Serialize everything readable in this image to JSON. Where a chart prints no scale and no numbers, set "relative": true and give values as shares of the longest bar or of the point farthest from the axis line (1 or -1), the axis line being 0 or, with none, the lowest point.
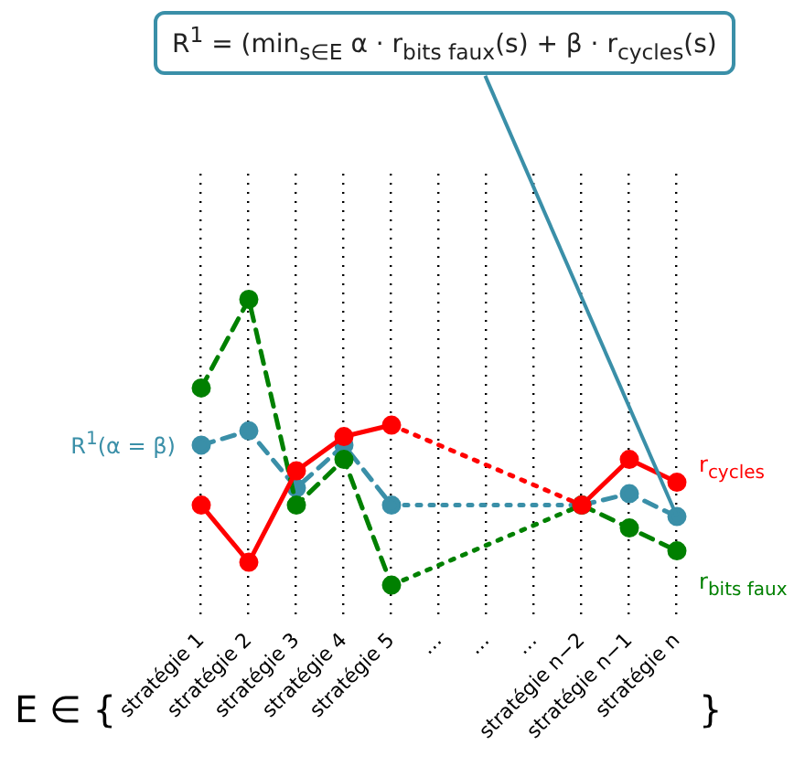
{
  "chart_data": {
    "type": "line",
    "relative": true,
    "grid": "x",
    "legend": false,
    "marker": "circle",
    "tick_labels": "x",
    "categories": [
      "stratégie 1",
      "stratégie 2",
      "stratégie 3",
      "stratégie 4",
      "stratégie 5",
      "…",
      "…",
      "…",
      "stratégie n−2",
      "stratégie n−1",
      "stratégie n"
    ],
    "series": [
      {
        "name": "r$_{cycles}$",
        "color": "#ff0000",
        "line_style": "solid",
        "values": [
          0.28,
          0.08,
          0.4,
          0.52,
          0.56,
          null,
          null,
          null,
          0.28,
          0.44,
          0.36
        ]
      },
      {
        "name": "r$_{bits faux}$",
        "color": "#008000",
        "line_style": "dashed",
        "values": [
          0.69,
          1,
          0.28,
          0.44,
          0,
          null,
          null,
          null,
          0.28,
          0.2,
          0.12
        ]
      },
      {
        "name": "R$^{1}$(α = β)",
        "color": "#3a8fa8",
        "line_style": "dashed",
        "values": [
          0.49,
          0.54,
          0.34,
          0.49,
          0.28,
          null,
          null,
          null,
          0.28,
          0.32,
          0.24
        ]
      }
    ],
    "xlabel": "E ∈ {",
    "annotations": [
      "R$^{1}$ = (min$_{s∈E}$ α · r$_{bits faux}$(s) + β · r$_{cycles}$(s)",
      "}"
    ]
  }
}
